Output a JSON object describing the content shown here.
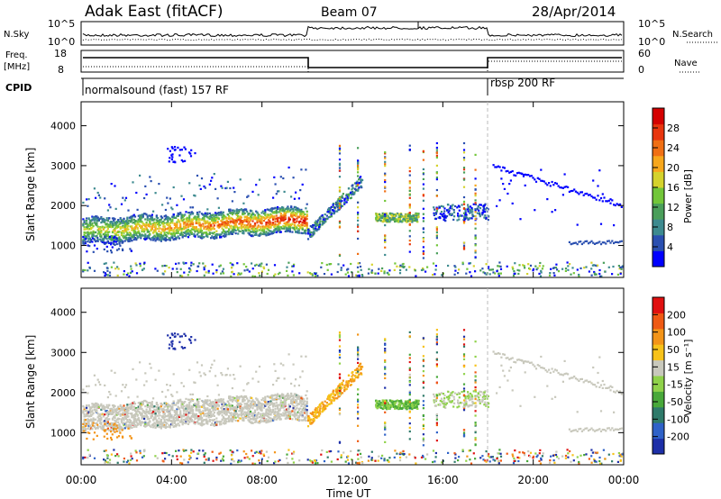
{
  "header": {
    "station": "Adak East (fitACF)",
    "beam": "Beam 07",
    "date": "28/Apr/2014"
  },
  "top_panels": {
    "nsky_label": "N.Sky",
    "nsky_ticks": [
      "10^5",
      "10^0"
    ],
    "nsearch_label": "N.Search",
    "freq_label": "Freq.",
    "freq_unit": "[MHz]",
    "freq_ticks": [
      "18",
      "8"
    ],
    "nave_label": "Nave",
    "nave_ticks": [
      "60",
      "0"
    ],
    "cpid_label": "CPID",
    "cpid_segments": [
      "normalsound (fast) 157 RF",
      "rbsp 200 RF"
    ]
  },
  "chart_data": [
    {
      "type": "heatmap",
      "ylabel": "Slant Range [km]",
      "yticks": [
        "1000",
        "2000",
        "3000",
        "4000"
      ],
      "ylim": [
        200,
        4600
      ],
      "colorbar_label": "Power [dB]",
      "colorbar_ticks": [
        "4",
        "8",
        "12",
        "16",
        "20",
        "24",
        "28"
      ],
      "colorbar_colors": [
        "#0000ff",
        "#2a4fb0",
        "#3d8a8f",
        "#4a9e5a",
        "#72c639",
        "#d4d22c",
        "#f7a71c",
        "#f06f14",
        "#e8350e",
        "#d40000"
      ]
    },
    {
      "type": "heatmap",
      "ylabel": "Slant Range [km]",
      "yticks": [
        "1000",
        "2000",
        "3000",
        "4000"
      ],
      "ylim": [
        200,
        4600
      ],
      "colorbar_label": "Velocity [m s⁻¹]",
      "colorbar_ticks": [
        "200",
        "100",
        "50",
        "15",
        "-15",
        "-50",
        "-100",
        "-200"
      ],
      "colorbar_colors": [
        "#1d2fa8",
        "#2f62c8",
        "#2f7a6a",
        "#48a83a",
        "#8fd24a",
        "#c8c8bc",
        "#f7c21a",
        "#f39418",
        "#ef5a14",
        "#e01010"
      ]
    }
  ],
  "x_axis": {
    "label": "Time UT",
    "ticks": [
      "00:00",
      "04:00",
      "08:00",
      "12:00",
      "16:00",
      "20:00",
      "00:00"
    ]
  }
}
